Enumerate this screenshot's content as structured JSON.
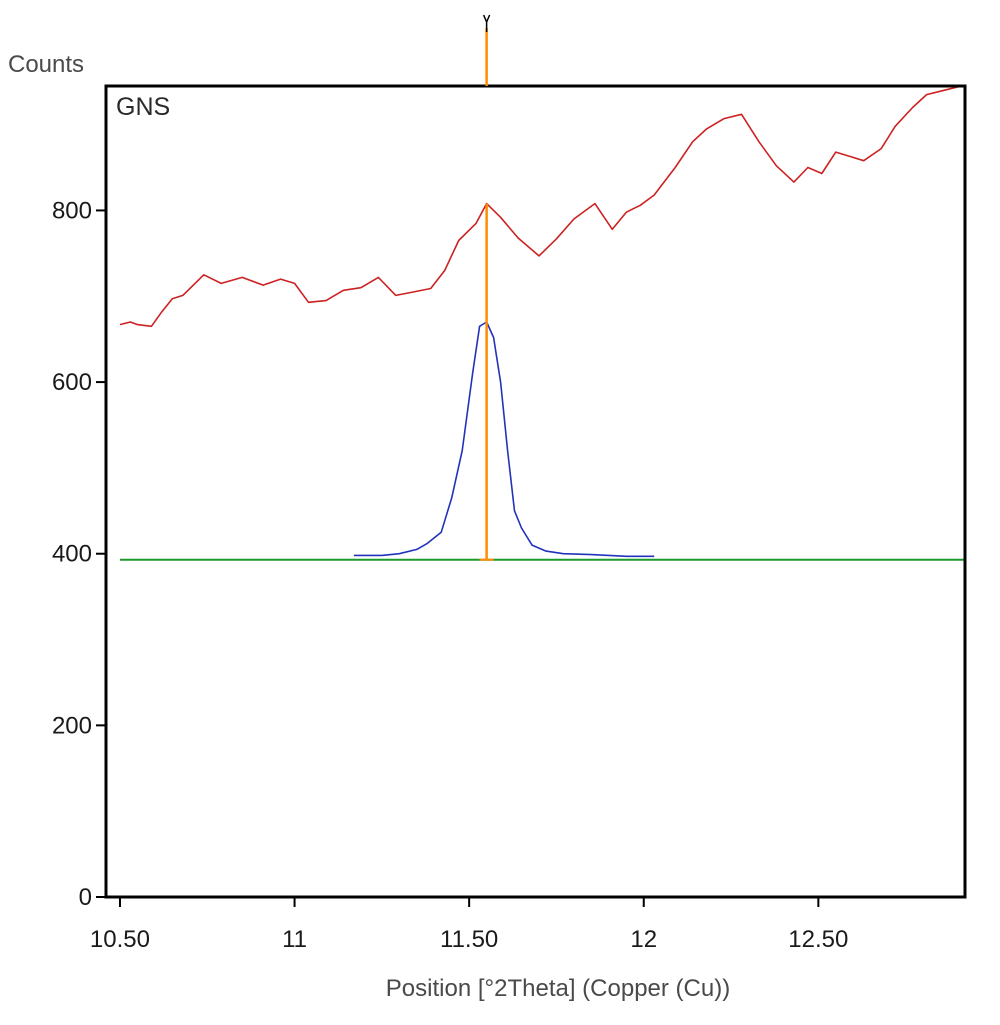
{
  "chart_data": {
    "type": "line",
    "title": "",
    "panel_label": "GNS",
    "xlabel": "Position [°2Theta] (Copper (Cu))",
    "ylabel": "Counts",
    "xlim": [
      10.46,
      12.92
    ],
    "ylim": [
      0,
      945
    ],
    "x_ticks": [
      {
        "value": 10.5,
        "label": "10.50"
      },
      {
        "value": 11.0,
        "label": "11"
      },
      {
        "value": 11.5,
        "label": "11.50"
      },
      {
        "value": 12.0,
        "label": "12"
      },
      {
        "value": 12.5,
        "label": "12.50"
      }
    ],
    "y_ticks": [
      {
        "value": 0,
        "label": "0"
      },
      {
        "value": 200,
        "label": "200"
      },
      {
        "value": 400,
        "label": "400"
      },
      {
        "value": 600,
        "label": "600"
      },
      {
        "value": 800,
        "label": "800"
      }
    ],
    "grid": false,
    "series": [
      {
        "color": "#cc2222",
        "x": [
          10.5,
          10.53,
          10.55,
          10.59,
          10.62,
          10.65,
          10.68,
          10.74,
          10.79,
          10.85,
          10.91,
          10.96,
          11.0,
          11.04,
          11.09,
          11.14,
          11.19,
          11.24,
          11.29,
          11.34,
          11.39,
          11.43,
          11.47,
          11.52,
          11.55,
          11.59,
          11.64,
          11.7,
          11.75,
          11.8,
          11.86,
          11.91,
          11.95,
          11.99,
          12.03,
          12.09,
          12.14,
          12.18,
          12.23,
          12.28,
          12.33,
          12.38,
          12.43,
          12.47,
          12.51,
          12.55,
          12.59,
          12.63,
          12.68,
          12.72,
          12.77,
          12.81,
          12.86,
          12.91
        ],
        "y": [
          667,
          670,
          667,
          665,
          682,
          697,
          701,
          725,
          715,
          722,
          713,
          720,
          715,
          693,
          695,
          707,
          710,
          722,
          701,
          705,
          709,
          730,
          765,
          785,
          808,
          792,
          768,
          747,
          767,
          790,
          808,
          778,
          798,
          806,
          818,
          850,
          880,
          895,
          907,
          912,
          880,
          852,
          833,
          850,
          843,
          868,
          863,
          858,
          872,
          898,
          920,
          935,
          940,
          945
        ]
      },
      {
        "color": "#2233bb",
        "x": [
          11.17,
          11.2,
          11.25,
          11.3,
          11.35,
          11.38,
          11.42,
          11.45,
          11.48,
          11.51,
          11.53,
          11.55,
          11.57,
          11.59,
          11.61,
          11.63,
          11.65,
          11.68,
          11.72,
          11.77,
          11.85,
          11.95,
          12.03
        ],
        "y": [
          398,
          398,
          398,
          400,
          405,
          412,
          425,
          465,
          520,
          610,
          665,
          670,
          652,
          600,
          520,
          450,
          430,
          410,
          403,
          400,
          399,
          397,
          397
        ]
      },
      {
        "color": "#1a9a2a",
        "x": [
          10.5,
          12.92
        ],
        "y": [
          393,
          393
        ]
      }
    ],
    "annotations": [
      {
        "type": "peak_marker",
        "x": 11.55,
        "color": "#ff8c00"
      }
    ]
  }
}
